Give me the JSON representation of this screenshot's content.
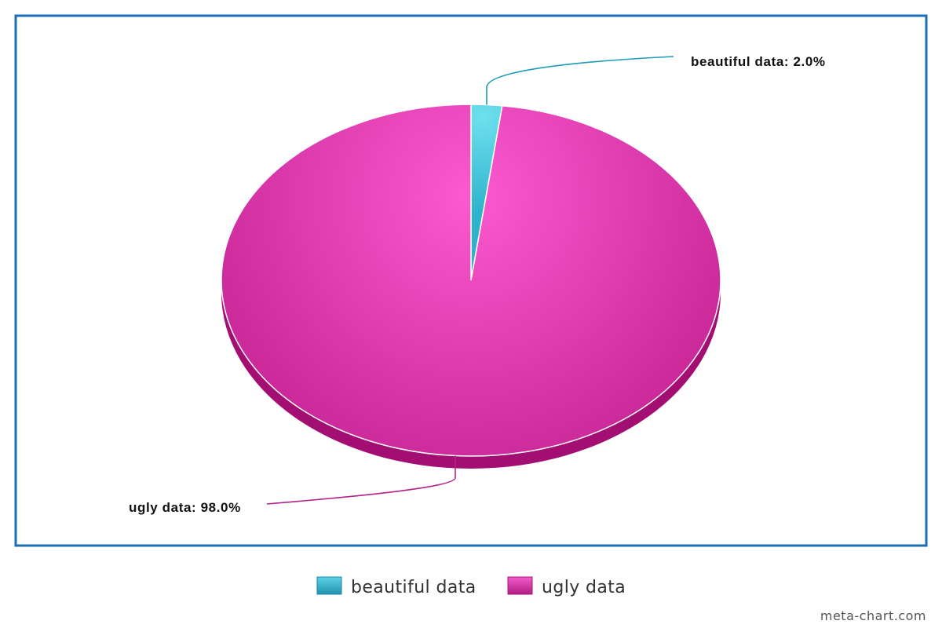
{
  "chart_data": {
    "type": "pie",
    "title": "",
    "style": "3d",
    "slices": [
      {
        "label": "beautiful data",
        "value": 2.0,
        "data_label": "beautiful data: 2.0%",
        "color": "#3fc2d8"
      },
      {
        "label": "ugly data",
        "value": 98.0,
        "data_label": "ugly data: 98.0%",
        "color": "#d23aa8"
      }
    ],
    "legend": {
      "position": "bottom",
      "items": [
        {
          "label": "beautiful data",
          "color": "#3fc2d8"
        },
        {
          "label": "ugly data",
          "color": "#d23aa8"
        }
      ]
    },
    "frame_color": "#1a6fb5"
  },
  "watermark": "meta-chart.com"
}
